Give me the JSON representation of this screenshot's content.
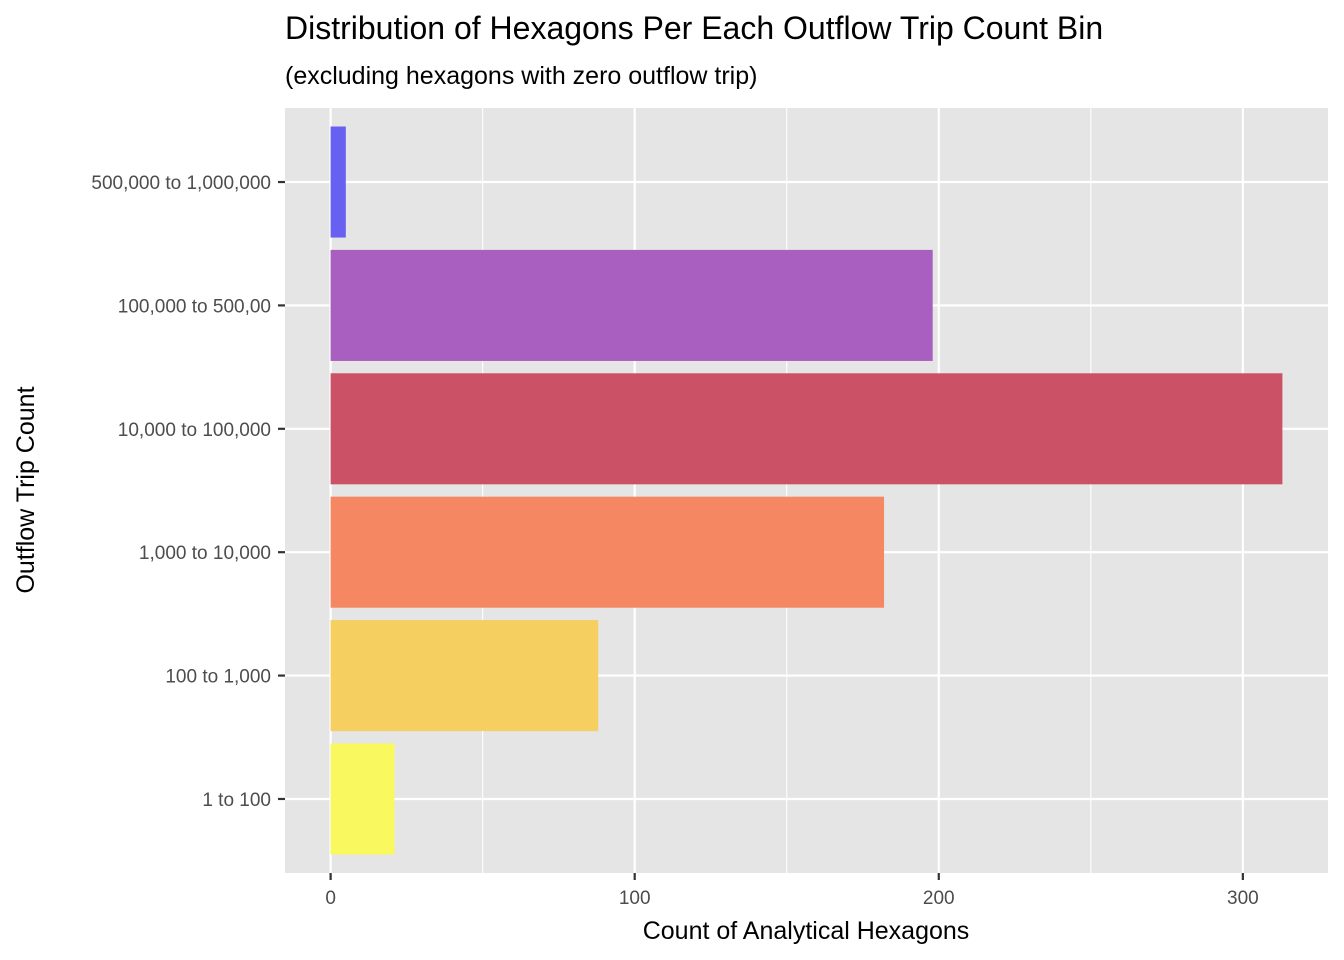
{
  "chart_data": {
    "type": "bar",
    "orientation": "horizontal",
    "title": "Distribution of Hexagons Per Each Outflow Trip Count Bin",
    "subtitle": "(excluding hexagons with zero outflow trip)",
    "xlabel": "Count of Analytical Hexagons",
    "ylabel": "Outflow Trip Count",
    "categories": [
      "1 to 100",
      "100 to 1,000",
      "1,000 to 10,000",
      "10,000 to 100,000",
      "100,000 to 500,00",
      "500,000 to 1,000,000"
    ],
    "values": [
      21,
      88,
      182,
      313,
      198,
      5
    ],
    "colors": [
      "#f9f85f",
      "#f5d060",
      "#f58762",
      "#ca5166",
      "#a85fbf",
      "#6860f0"
    ],
    "xlim": [
      -15,
      328
    ],
    "xticks": [
      0,
      100,
      200,
      300
    ],
    "xtick_labels": [
      "0",
      "100",
      "200",
      "300"
    ],
    "grid": true,
    "panel_background": "#e5e5e5",
    "grid_color": "#ffffff",
    "legend": "none"
  }
}
